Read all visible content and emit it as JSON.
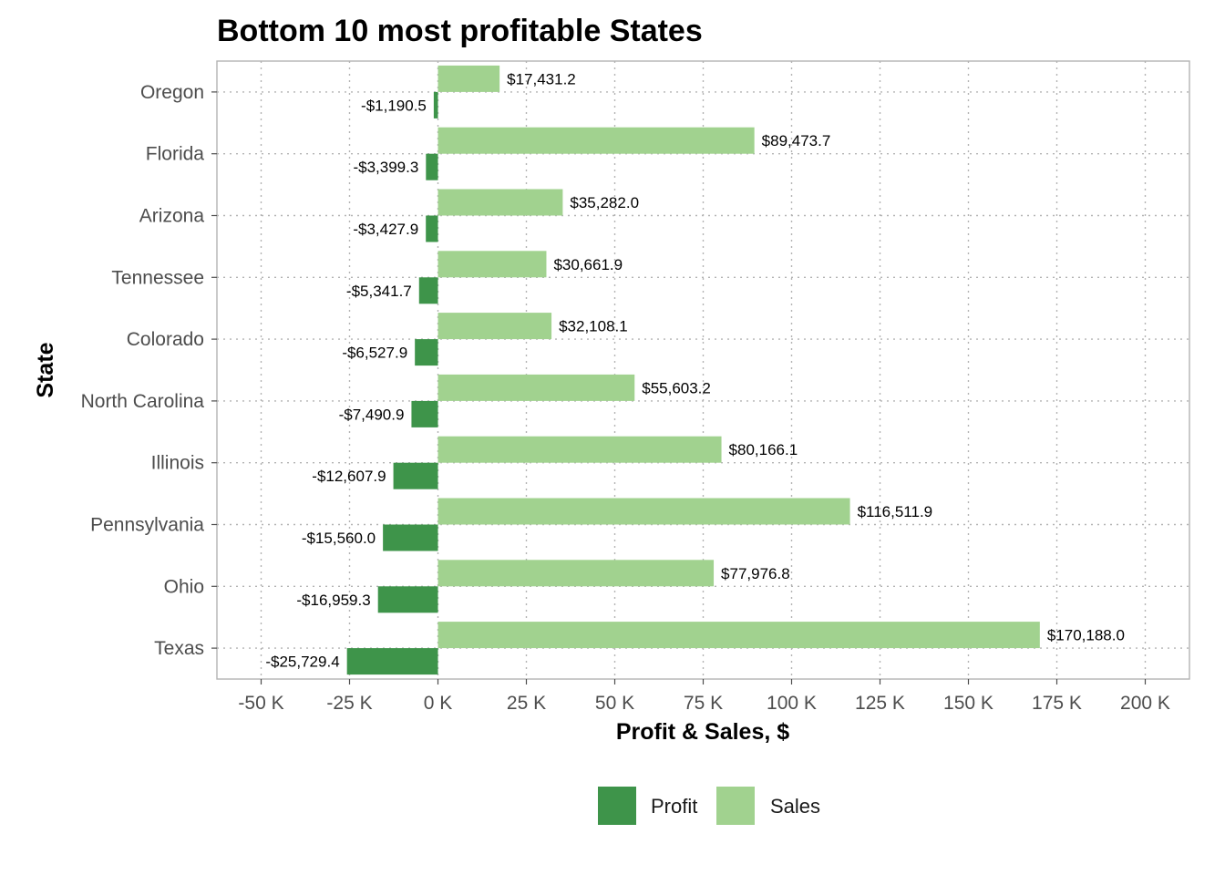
{
  "chart_data": {
    "type": "bar",
    "orientation": "horizontal",
    "title": "Bottom 10 most profitable States",
    "xlabel": "Profit & Sales, $",
    "ylabel": "State",
    "categories": [
      "Oregon",
      "Florida",
      "Arizona",
      "Tennessee",
      "Colorado",
      "North Carolina",
      "Illinois",
      "Pennsylvania",
      "Ohio",
      "Texas"
    ],
    "series": [
      {
        "name": "Profit",
        "color": "#3e944a",
        "values": [
          -1190.5,
          -3399.3,
          -3427.9,
          -5341.7,
          -6527.9,
          -7490.9,
          -12607.9,
          -15560.0,
          -16959.3,
          -25729.4
        ],
        "labels": [
          "-$1,190.5",
          "-$3,399.3",
          "-$3,427.9",
          "-$5,341.7",
          "-$6,527.9",
          "-$7,490.9",
          "-$12,607.9",
          "-$15,560.0",
          "-$16,959.3",
          "-$25,729.4"
        ]
      },
      {
        "name": "Sales",
        "color": "#a1d28f",
        "values": [
          17431.2,
          89473.7,
          35282.0,
          30661.9,
          32108.1,
          55603.2,
          80166.1,
          116511.9,
          77976.8,
          170188.0
        ],
        "labels": [
          "$17,431.2",
          "$89,473.7",
          "$35,282.0",
          "$30,661.9",
          "$32,108.1",
          "$55,603.2",
          "$80,166.1",
          "$116,511.9",
          "$77,976.8",
          "$170,188.0"
        ]
      }
    ],
    "xticks": [
      -50000,
      -25000,
      0,
      25000,
      50000,
      75000,
      100000,
      125000,
      150000,
      175000,
      200000
    ],
    "xtick_labels": [
      "-50 K",
      "-25 K",
      "0 K",
      "25 K",
      "50 K",
      "75 K",
      "100 K",
      "125 K",
      "150 K",
      "175 K",
      "200 K"
    ],
    "xlim": [
      -62500,
      212500
    ],
    "grid": true,
    "legend_position": "bottom"
  }
}
